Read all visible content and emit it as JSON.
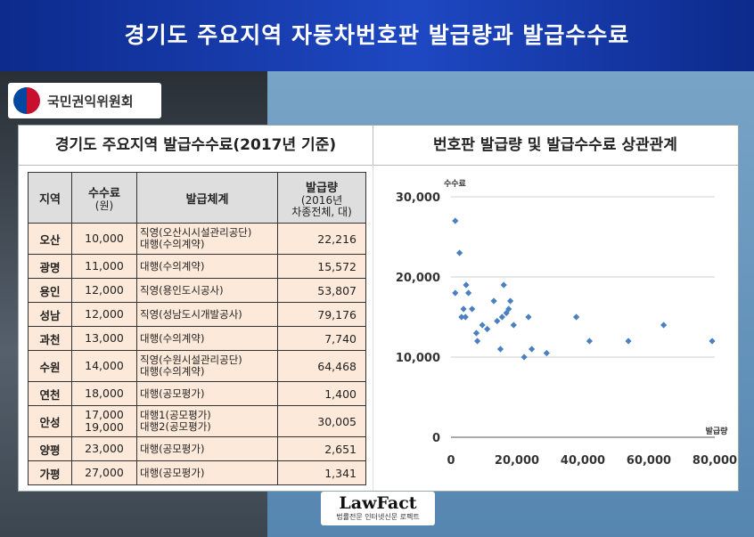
{
  "header_title": "경기도 주요지역 자동차번호판 발급량과 발급수수료",
  "logo_text": "국민권익위원회",
  "left_title": "경기도 주요지역 발급수수료(2017년 기준)",
  "right_title": "번호판 발급량 및 발급수수료 상관관계",
  "table": {
    "headers": {
      "region": "지역",
      "fee_line1": "수수료",
      "fee_line2": "(원)",
      "system": "발급체계",
      "vol_line1": "발급량",
      "vol_line2": "(2016년",
      "vol_line3": "차종전체, 대)"
    },
    "rows": [
      {
        "region": "오산",
        "fee": "10,000",
        "sys1": "직영(오산시시설관리공단)",
        "sys2": "대행(수의계약)",
        "vol": "22,216"
      },
      {
        "region": "광명",
        "fee": "11,000",
        "sys1": "대행(수의계약)",
        "vol": "15,572"
      },
      {
        "region": "용인",
        "fee": "12,000",
        "sys1": "직영(용인도시공사)",
        "vol": "53,807"
      },
      {
        "region": "성남",
        "fee": "12,000",
        "sys1": "직영(성남도시개발공사)",
        "vol": "79,176"
      },
      {
        "region": "과천",
        "fee": "13,000",
        "sys1": "대행(수의계약)",
        "vol": "7,740"
      },
      {
        "region": "수원",
        "fee": "14,000",
        "sys1": "직영(수원시설관리공단)",
        "sys2": "대행(수의계약)",
        "vol": "64,468"
      },
      {
        "region": "연천",
        "fee": "18,000",
        "sys1": "대행(공모평가)",
        "vol": "1,400"
      },
      {
        "region": "안성",
        "fee": "17,000",
        "fee2": "19,000",
        "sys1": "대행1(공모평가)",
        "sys2": "대행2(공모평가)",
        "vol": "30,005"
      },
      {
        "region": "양평",
        "fee": "23,000",
        "sys1": "대행(공모평가)",
        "vol": "2,651"
      },
      {
        "region": "가평",
        "fee": "27,000",
        "sys1": "대행(공모평가)",
        "vol": "1,341"
      }
    ]
  },
  "chart_data": {
    "type": "scatter",
    "ylabel": "수수료",
    "xlabel": "발급량",
    "xlim": [
      0,
      80000
    ],
    "ylim": [
      0,
      30000
    ],
    "xticks": [
      "0",
      "20,000",
      "40,000",
      "60,000",
      "80,000"
    ],
    "yticks": [
      "0",
      "10,000",
      "20,000",
      "30,000"
    ],
    "marker_color": "#4a7fc1",
    "points": [
      [
        1300,
        27000
      ],
      [
        2600,
        23000
      ],
      [
        1300,
        18000
      ],
      [
        3200,
        15000
      ],
      [
        3800,
        16000
      ],
      [
        4400,
        15000
      ],
      [
        4600,
        19000
      ],
      [
        5300,
        18000
      ],
      [
        6400,
        16000
      ],
      [
        7700,
        13000
      ],
      [
        8000,
        12000
      ],
      [
        9500,
        14000
      ],
      [
        11000,
        13500
      ],
      [
        13000,
        17000
      ],
      [
        14000,
        14500
      ],
      [
        15000,
        11000
      ],
      [
        15500,
        15000
      ],
      [
        16000,
        19000
      ],
      [
        16800,
        15500
      ],
      [
        17500,
        16000
      ],
      [
        18000,
        17000
      ],
      [
        19000,
        14000
      ],
      [
        22200,
        10000
      ],
      [
        23500,
        15000
      ],
      [
        24500,
        11000
      ],
      [
        29000,
        10500
      ],
      [
        38000,
        15000
      ],
      [
        42000,
        12000
      ],
      [
        53800,
        12000
      ],
      [
        64500,
        14000
      ],
      [
        79200,
        12000
      ]
    ]
  },
  "lawfact": {
    "main": "LawFact",
    "sub": "법률전문 인터넷신문 로펙트"
  }
}
